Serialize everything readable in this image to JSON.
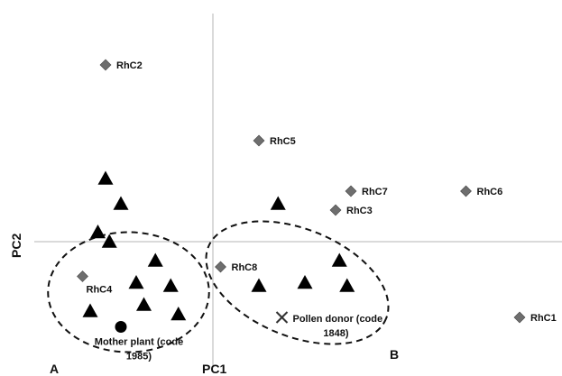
{
  "chart_data": {
    "type": "scatter",
    "xlabel": "PC1",
    "ylabel": "PC2",
    "grid": false,
    "colors": {
      "diamond": "#6e6e6e",
      "triangle": "#000000",
      "axis": "#b4b4b4"
    },
    "labeled_points": [
      {
        "label": "RhC2",
        "marker": "diamond",
        "x": -1.4,
        "y": 2.8
      },
      {
        "label": "RhC5",
        "marker": "diamond",
        "x": 0.6,
        "y": 1.6
      },
      {
        "label": "RhC7",
        "marker": "diamond",
        "x": 1.8,
        "y": 0.8
      },
      {
        "label": "RhC6",
        "marker": "diamond",
        "x": 3.3,
        "y": 0.8
      },
      {
        "label": "RhC3",
        "marker": "diamond",
        "x": 1.6,
        "y": 0.5
      },
      {
        "label": "RhC8",
        "marker": "diamond",
        "x": 0.1,
        "y": -0.4
      },
      {
        "label": "RhC4",
        "marker": "diamond",
        "x": -1.7,
        "y": -0.55
      },
      {
        "label": "RhC1",
        "marker": "diamond",
        "x": 4.0,
        "y": -1.2
      }
    ],
    "special_points": [
      {
        "label_lines": [
          "Mother plant (code",
          "1985)"
        ],
        "marker": "circle",
        "x": -1.2,
        "y": -1.35
      },
      {
        "label_lines": [
          "Pollen donor (code",
          "1848)"
        ],
        "marker": "cross",
        "x": 0.9,
        "y": -1.2
      }
    ],
    "unlabeled_points": [
      {
        "marker": "triangle",
        "x": -1.4,
        "y": 1.0
      },
      {
        "marker": "triangle",
        "x": -1.2,
        "y": 0.6
      },
      {
        "marker": "triangle",
        "x": -1.5,
        "y": 0.15
      },
      {
        "marker": "triangle",
        "x": -1.35,
        "y": 0.0
      },
      {
        "marker": "triangle",
        "x": -0.75,
        "y": -0.3
      },
      {
        "marker": "triangle",
        "x": -1.0,
        "y": -0.65
      },
      {
        "marker": "triangle",
        "x": -0.55,
        "y": -0.7
      },
      {
        "marker": "triangle",
        "x": -1.6,
        "y": -1.1
      },
      {
        "marker": "triangle",
        "x": -0.9,
        "y": -1.0
      },
      {
        "marker": "triangle",
        "x": -0.45,
        "y": -1.15
      },
      {
        "marker": "triangle",
        "x": 0.85,
        "y": 0.6
      },
      {
        "marker": "triangle",
        "x": 1.65,
        "y": -0.3
      },
      {
        "marker": "triangle",
        "x": 0.6,
        "y": -0.7
      },
      {
        "marker": "triangle",
        "x": 1.2,
        "y": -0.65
      },
      {
        "marker": "triangle",
        "x": 1.75,
        "y": -0.7
      }
    ],
    "groups": [
      {
        "label": "A",
        "center": [
          -1.1,
          -0.8
        ],
        "radius": [
          1.05,
          0.95
        ]
      },
      {
        "label": "B",
        "center": [
          1.1,
          -0.65
        ],
        "radius": [
          1.25,
          0.85
        ],
        "rotation_deg": 22
      }
    ]
  }
}
